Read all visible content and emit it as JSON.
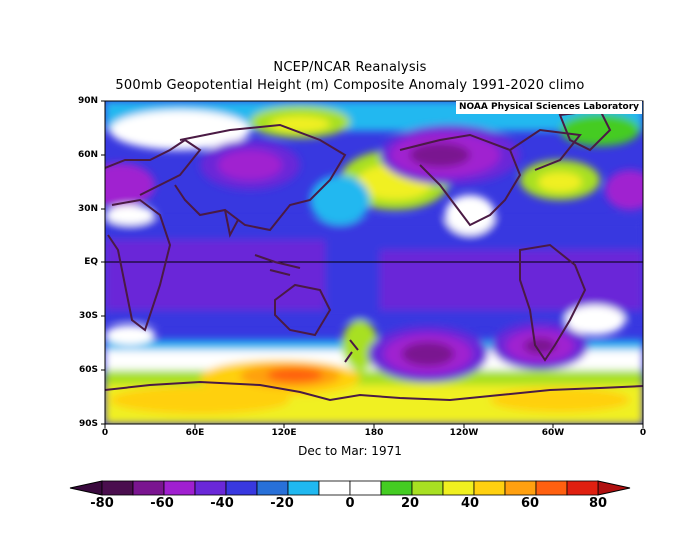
{
  "title": "NCEP/NCAR Reanalysis",
  "subtitle": "500mb Geopotential Height (m) Composite Anomaly 1991-2020 climo",
  "period": "Dec to Mar: 1971",
  "credit": "NOAA Physical Sciences Laboratory",
  "lat_labels": [
    "90N",
    "60N",
    "30N",
    "EQ",
    "30S",
    "60S",
    "90S"
  ],
  "lon_labels": [
    "0",
    "60E",
    "120E",
    "180",
    "120W",
    "60W",
    "0"
  ],
  "colorbar": {
    "labels": [
      "-80",
      "-60",
      "-40",
      "-20",
      "0",
      "20",
      "40",
      "60",
      "80"
    ],
    "colors": [
      "#4a0e4e",
      "#7a1590",
      "#a020d0",
      "#6a28d8",
      "#3838e0",
      "#2870d8",
      "#20b8f0",
      "#ffffff",
      "#ffffff",
      "#44cc22",
      "#a8e022",
      "#f0f020",
      "#ffd010",
      "#ffa010",
      "#ff6010",
      "#e02010"
    ],
    "under_color": "#3a0a3e",
    "over_color": "#b01010"
  },
  "field": {
    "name": "500mb Geopotential Height Anomaly",
    "units": "m",
    "anomalies": [
      {
        "lon": 150,
        "lat": -60,
        "value": 70
      },
      {
        "lon": 60,
        "lat": -70,
        "value": 50
      },
      {
        "lon": 240,
        "lat": -75,
        "value": 40
      },
      {
        "lon": -150,
        "lat": -45,
        "value": -75
      },
      {
        "lon": -75,
        "lat": -45,
        "value": -65
      },
      {
        "lon": -120,
        "lat": 60,
        "value": -80
      },
      {
        "lon": 95,
        "lat": 55,
        "value": -65
      },
      {
        "lon": 10,
        "lat": 45,
        "value": -60
      },
      {
        "lon": -175,
        "lat": 45,
        "value": 40
      },
      {
        "lon": -60,
        "lat": 45,
        "value": 40
      },
      {
        "lon": 85,
        "lat": 80,
        "value": 30
      }
    ]
  }
}
